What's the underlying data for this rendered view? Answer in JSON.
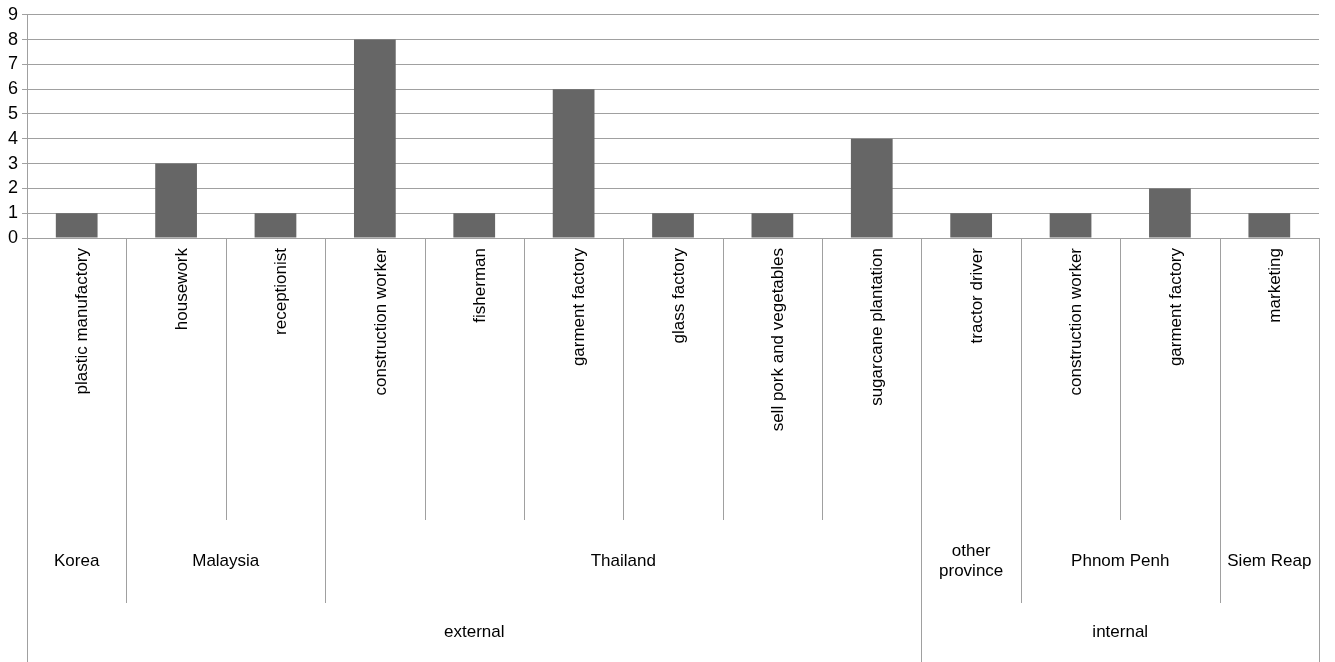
{
  "chart_data": {
    "type": "bar",
    "categories": [
      "plastic manufactory",
      "housework",
      "receptionist",
      "construction worker",
      "fisherman",
      "garment factory",
      "glass factory",
      "sell pork and vegetables",
      "sugarcane plantation",
      "tractor driver",
      "construction worker",
      "garment factory",
      "marketing"
    ],
    "values": [
      1,
      3,
      1,
      8,
      1,
      6,
      1,
      1,
      4,
      1,
      1,
      2,
      1
    ],
    "color": "#666666",
    "ylim": [
      0,
      9
    ],
    "yticks": [
      0,
      1,
      2,
      3,
      4,
      5,
      6,
      7,
      8,
      9
    ],
    "grid": "y",
    "legend": false,
    "annotations": [
      "Korea",
      "Malaysia",
      "Thailand",
      "other province",
      "Phnom Penh",
      "Siem Reap",
      "external",
      "internal"
    ]
  }
}
